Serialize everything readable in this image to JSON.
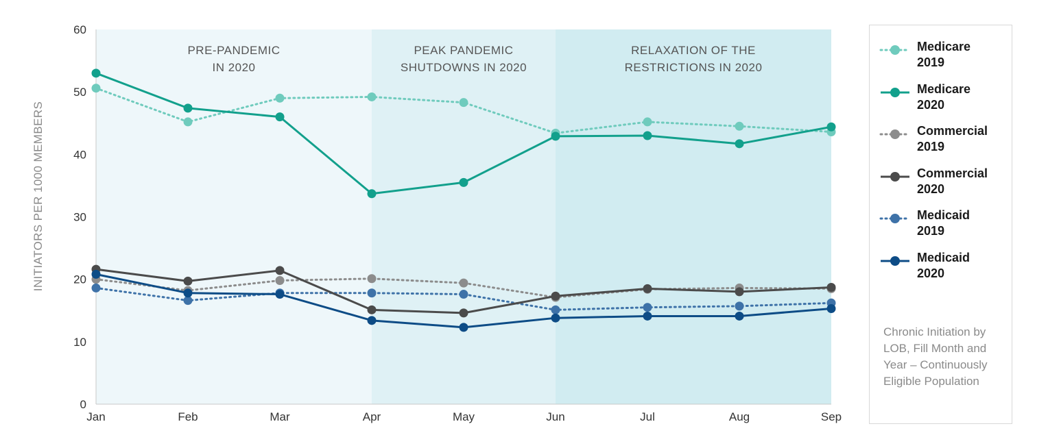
{
  "chart_data": {
    "type": "line",
    "ylabel": "INITIATORS PER 1000 MEMBERS",
    "xlabel": "",
    "ylim": [
      0,
      60
    ],
    "yticks": [
      0,
      10,
      20,
      30,
      40,
      50,
      60
    ],
    "categories": [
      "Jan",
      "Feb",
      "Mar",
      "Apr",
      "May",
      "Jun",
      "Jul",
      "Aug",
      "Sep"
    ],
    "periods": [
      {
        "label_lines": [
          "PRE-PANDEMIC",
          "IN 2020"
        ],
        "from": "Jan",
        "to": "Apr",
        "color": "#eef7fa"
      },
      {
        "label_lines": [
          "PEAK PANDEMIC",
          "SHUTDOWNS IN 2020"
        ],
        "from": "Apr",
        "to": "Jun",
        "color": "#dff1f5"
      },
      {
        "label_lines": [
          "RELAXATION OF THE",
          "RESTRICTIONS IN 2020"
        ],
        "from": "Jun",
        "to": "Sep",
        "color": "#d1ecf1"
      }
    ],
    "series": [
      {
        "name_lines": [
          "Medicare",
          "2019"
        ],
        "color": "#6fcbbd",
        "dashed": true,
        "values": [
          50.6,
          45.2,
          49.0,
          49.2,
          48.3,
          43.4,
          45.2,
          44.5,
          43.6
        ]
      },
      {
        "name_lines": [
          "Medicare",
          "2020"
        ],
        "color": "#12a08c",
        "dashed": false,
        "values": [
          53.0,
          47.4,
          46.0,
          33.7,
          35.5,
          42.9,
          43.0,
          41.7,
          44.4
        ]
      },
      {
        "name_lines": [
          "Commercial",
          "2019"
        ],
        "color": "#8c8c8c",
        "dashed": true,
        "values": [
          20.0,
          18.2,
          19.8,
          20.1,
          19.4,
          17.1,
          18.4,
          18.6,
          18.5
        ]
      },
      {
        "name_lines": [
          "Commercial",
          "2020"
        ],
        "color": "#4b4b4b",
        "dashed": false,
        "values": [
          21.6,
          19.7,
          21.4,
          15.1,
          14.6,
          17.3,
          18.5,
          18.0,
          18.7
        ]
      },
      {
        "name_lines": [
          "Medicaid",
          "2019"
        ],
        "color": "#3e72a8",
        "dashed": true,
        "values": [
          18.6,
          16.6,
          17.8,
          17.8,
          17.6,
          15.1,
          15.5,
          15.7,
          16.2
        ]
      },
      {
        "name_lines": [
          "Medicaid",
          "2020"
        ],
        "color": "#0d4c86",
        "dashed": false,
        "values": [
          20.8,
          17.8,
          17.6,
          13.4,
          12.3,
          13.8,
          14.1,
          14.1,
          15.3
        ]
      }
    ]
  },
  "legend": {
    "note": "Chronic Initiation by LOB, Fill Month and Year – Continuously Eligible Population"
  }
}
